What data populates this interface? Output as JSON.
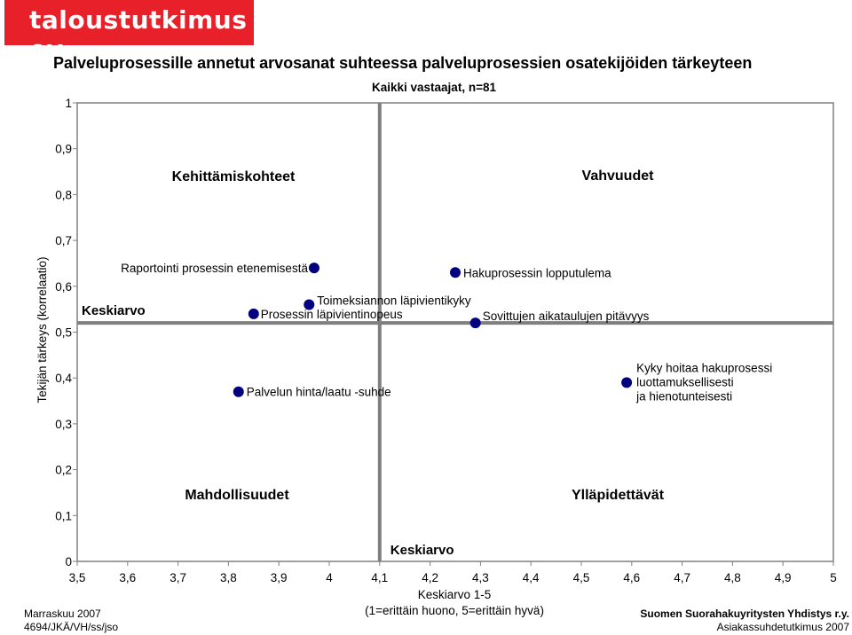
{
  "brand": {
    "logo_text": "taloustutkimus oy",
    "color": "#e8202a"
  },
  "footer": {
    "date": "Marraskuu 2007",
    "code": "4694/JKÄ/VH/ss/jso",
    "client": "Suomen Suorahakuyritysten Yhdistys r.y.",
    "report": "Asiakassuhdetutkimus 2007"
  },
  "chart_data": {
    "type": "scatter",
    "title": "Palveluprosessille annetut arvosanat suhteessa palveluprosessien osatekijöiden tärkeyteen",
    "subtitle": "Kaikki vastaajat, n=81",
    "xlabel": "Keskiarvo 1-5",
    "xlabel2": "(1=erittäin huono, 5=erittäin hyvä)",
    "ylabel": "Tekijän tärkeys (korrelaatio)",
    "xlim": [
      3.5,
      5
    ],
    "ylim": [
      0,
      1
    ],
    "x_ticks": [
      "3,5",
      "3,6",
      "3,7",
      "3,8",
      "3,9",
      "4",
      "4,1",
      "4,2",
      "4,3",
      "4,4",
      "4,5",
      "4,6",
      "4,7",
      "4,8",
      "4,9",
      "5"
    ],
    "y_ticks": [
      "0",
      "0,1",
      "0,2",
      "0,3",
      "0,4",
      "0,5",
      "0,6",
      "0,7",
      "0,8",
      "0,9",
      "1"
    ],
    "grid": false,
    "reference_lines": {
      "x": 4.1,
      "y": 0.52,
      "x_label": "Keskiarvo",
      "y_label": "Keskiarvo"
    },
    "quadrants": {
      "top_left": "Kehittämiskohteet",
      "top_right": "Vahvuudet",
      "bottom_left": "Mahdollisuudet",
      "bottom_right": "Ylläpidettävät"
    },
    "marker_color": "#000080",
    "points": [
      {
        "label": "Raportointi prosessin etenemisestä",
        "x": 3.97,
        "y": 0.64
      },
      {
        "label": "Hakuprosessin lopputulema",
        "x": 4.25,
        "y": 0.63
      },
      {
        "label": "Toimeksiannon läpivientikyky",
        "x": 3.96,
        "y": 0.56
      },
      {
        "label": "Prosessin läpivientinopeus",
        "x": 3.85,
        "y": 0.54
      },
      {
        "label": "Sovittujen aikataulujen pitävyys",
        "x": 4.29,
        "y": 0.52
      },
      {
        "label": "Kyky hoitaa hakuprosessi\nluottamuksellisesti\nja hienotunteisesti",
        "x": 4.59,
        "y": 0.39
      },
      {
        "label": "Palvelun hinta/laatu -suhde",
        "x": 3.82,
        "y": 0.37
      }
    ]
  }
}
